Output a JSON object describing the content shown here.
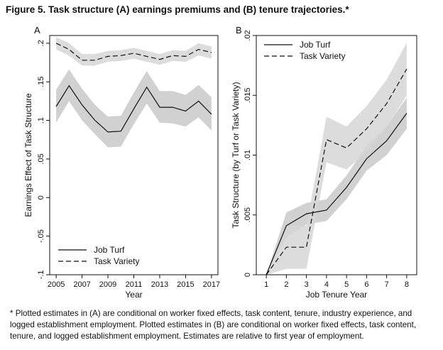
{
  "figure": {
    "title": "Figure 5.  Task structure (A) earnings premiums and (B) tenure trajectories.*",
    "footnote": "* Plotted estimates in (A) are conditional on worker fixed effects, task content, tenure, industry experience, and logged establishment employment. Plotted estimates in (B) are conditional on worker fixed effects, task content, tenure, and logged establishment employment. Estimates are relative to first year of employment."
  },
  "chart_data": [
    {
      "panel": "A",
      "type": "line",
      "xlabel": "Year",
      "ylabel": "Earnings Effect of Task Structure",
      "xlim": [
        2004.5,
        2017.5
      ],
      "ylim": [
        -0.1,
        0.21
      ],
      "xticks": [
        2005,
        2007,
        2009,
        2011,
        2013,
        2015,
        2017
      ],
      "yticks": [
        -0.1,
        -0.05,
        0,
        0.05,
        0.1,
        0.15,
        0.2
      ],
      "ytick_labels": [
        "-.1",
        "-.05",
        "0",
        ".05",
        ".1",
        ".15",
        ".2"
      ],
      "grid": false,
      "legend_position": "bottom-left",
      "x": [
        2005,
        2006,
        2007,
        2008,
        2009,
        2010,
        2011,
        2012,
        2013,
        2014,
        2015,
        2016,
        2017
      ],
      "series": [
        {
          "name": "Job Turf",
          "style": "solid",
          "values": [
            0.118,
            0.145,
            0.12,
            0.1,
            0.085,
            0.086,
            0.115,
            0.143,
            0.117,
            0.117,
            0.112,
            0.125,
            0.108
          ],
          "lower": [
            0.097,
            0.125,
            0.1,
            0.082,
            0.065,
            0.066,
            0.095,
            0.122,
            0.097,
            0.096,
            0.092,
            0.104,
            0.087
          ],
          "upper": [
            0.14,
            0.166,
            0.141,
            0.12,
            0.105,
            0.106,
            0.136,
            0.164,
            0.138,
            0.138,
            0.133,
            0.146,
            0.13
          ]
        },
        {
          "name": "Task Variety",
          "style": "dashed",
          "values": [
            0.2,
            0.192,
            0.178,
            0.178,
            0.183,
            0.184,
            0.187,
            0.183,
            0.179,
            0.184,
            0.183,
            0.192,
            0.188
          ],
          "lower": [
            0.192,
            0.184,
            0.171,
            0.171,
            0.176,
            0.177,
            0.18,
            0.176,
            0.172,
            0.177,
            0.176,
            0.184,
            0.18
          ],
          "upper": [
            0.208,
            0.2,
            0.186,
            0.186,
            0.19,
            0.191,
            0.194,
            0.19,
            0.186,
            0.191,
            0.19,
            0.2,
            0.196
          ]
        }
      ]
    },
    {
      "panel": "B",
      "type": "line",
      "xlabel": "Job Tenure Year",
      "ylabel": "Task Structure (by Turf or Task Variety)",
      "xlim": [
        0.5,
        8.5
      ],
      "ylim": [
        0,
        0.02
      ],
      "xticks": [
        1,
        2,
        3,
        4,
        5,
        6,
        7,
        8
      ],
      "yticks": [
        0,
        0.005,
        0.01,
        0.015,
        0.02
      ],
      "ytick_labels": [
        "0",
        ".005",
        ".01",
        ".015",
        ".02"
      ],
      "grid": false,
      "legend_position": "top-left",
      "x": [
        1,
        2,
        3,
        4,
        5,
        6,
        7,
        8
      ],
      "series": [
        {
          "name": "Job Turf",
          "style": "solid",
          "values": [
            0,
            0.0041,
            0.0051,
            0.0054,
            0.0073,
            0.0097,
            0.0112,
            0.0135
          ],
          "lower": [
            0,
            0.0031,
            0.0042,
            0.0045,
            0.0063,
            0.0087,
            0.01,
            0.0122
          ],
          "upper": [
            0,
            0.0052,
            0.006,
            0.0063,
            0.0083,
            0.0108,
            0.0124,
            0.0148
          ]
        },
        {
          "name": "Task Variety",
          "style": "dashed",
          "values": [
            0,
            0.0023,
            0.0023,
            0.0113,
            0.0106,
            0.0122,
            0.0143,
            0.0172
          ],
          "lower": [
            0,
            0.0005,
            0.0005,
            0.0094,
            0.0088,
            0.0103,
            0.0123,
            0.015
          ],
          "upper": [
            0,
            0.0041,
            0.0041,
            0.0132,
            0.0124,
            0.0141,
            0.0163,
            0.0194
          ]
        }
      ]
    }
  ]
}
